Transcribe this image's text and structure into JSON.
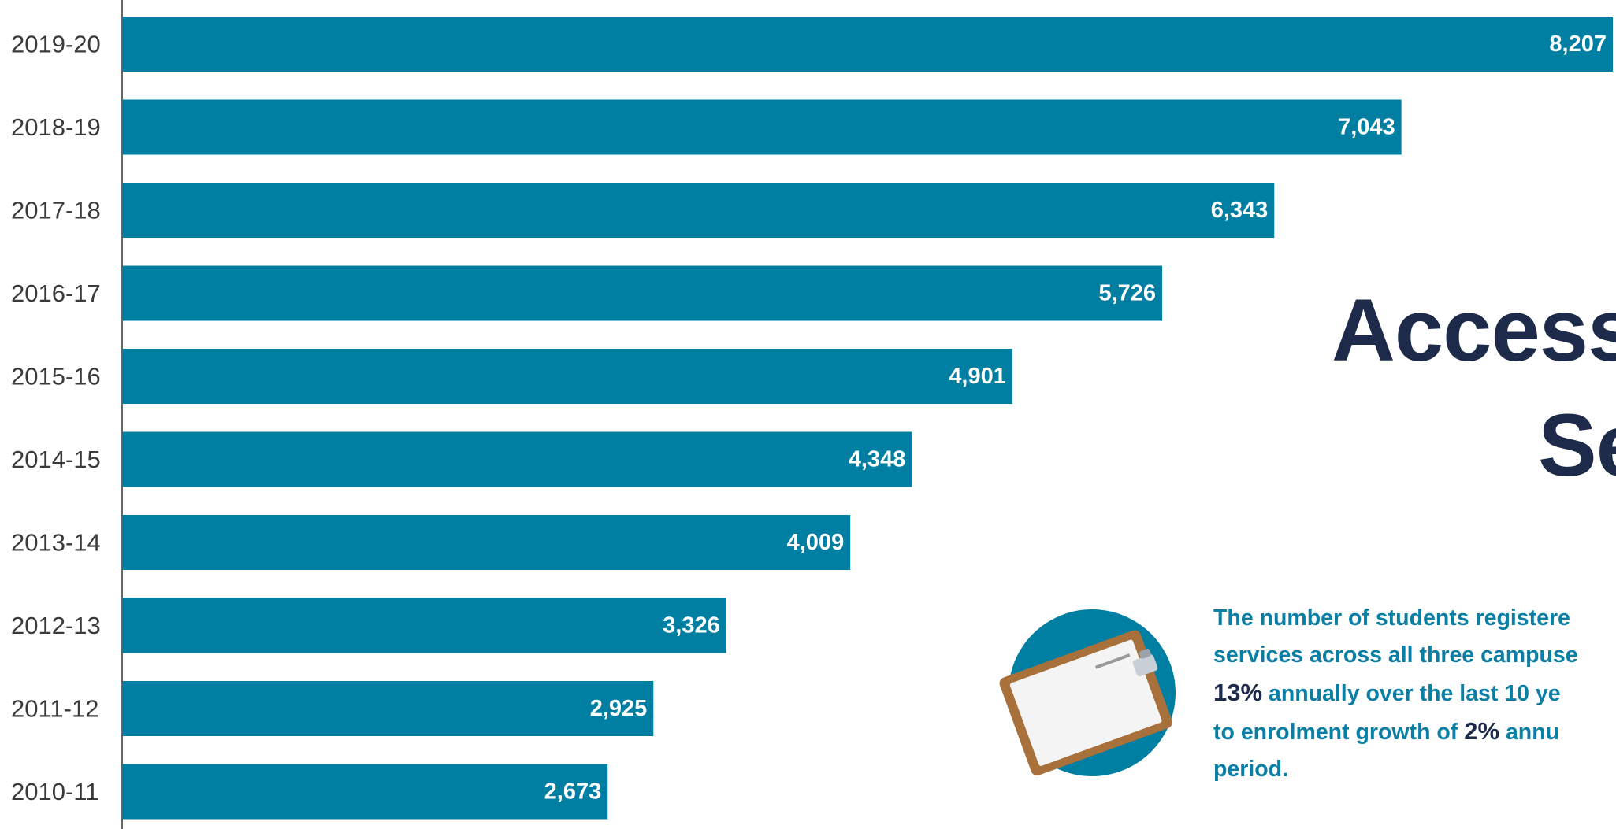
{
  "chart_data": {
    "type": "bar",
    "orientation": "horizontal",
    "categories": [
      "2019-20",
      "2018-19",
      "2017-18",
      "2016-17",
      "2015-16",
      "2014-15",
      "2013-14",
      "2012-13",
      "2011-12",
      "2010-11"
    ],
    "values": [
      8207,
      7043,
      6343,
      5726,
      4901,
      4348,
      4009,
      3326,
      2925,
      2673
    ],
    "value_labels": [
      "8,207",
      "7,043",
      "6,343",
      "5,726",
      "4,901",
      "4,348",
      "4,009",
      "3,326",
      "2,925",
      "2,673"
    ],
    "bar_color": "#007fa3",
    "xlabel": "",
    "ylabel": "",
    "xlim": [
      0,
      8207
    ],
    "grid": false,
    "legend": "none"
  },
  "title": {
    "line1": "Access",
    "line2": "Se"
  },
  "description": {
    "line1": "The number of students registere",
    "line2": "services across all three campuse",
    "line3_highlight": "13%",
    "line3_rest": " annually over the last 10 ye",
    "line4_pre": "to enrolment growth of ",
    "line4_highlight": "2%",
    "line4_rest": " annu",
    "line5": "period."
  },
  "icon": {
    "name": "clipboard-icon",
    "circle_color": "#007fa3",
    "board_color": "#a8703a",
    "paper_color": "#f4f4f4"
  }
}
